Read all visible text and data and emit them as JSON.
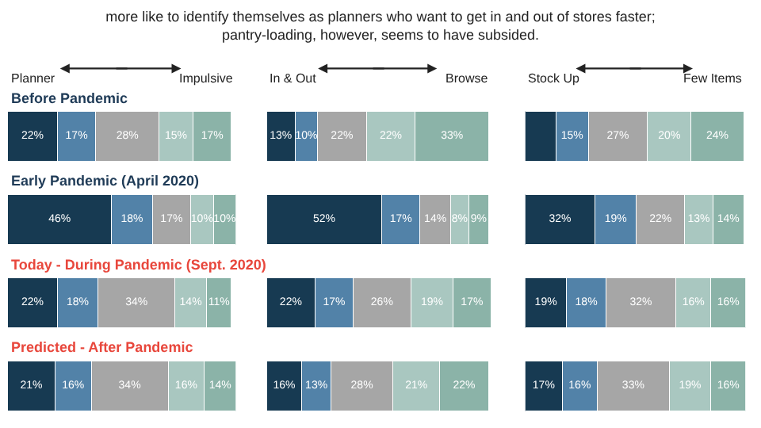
{
  "chart_data": [
    {
      "type": "bar",
      "orientation": "horizontal",
      "stacked": true,
      "title": "more like to identify themselves as planners who want to get in and out of stores faster;\npantry-loading, however, seems to have subsided.",
      "annotations": [
        "Planner",
        "Impulsive"
      ],
      "categories": [
        "Before Pandemic",
        "Early Pandemic (April 2020)",
        "Today - During Pandemic (Sept. 2020)",
        "Predicted - After Pandemic"
      ],
      "series": [
        {
          "color": "#173a52",
          "values": [
            22,
            46,
            22,
            21
          ],
          "value_labels": [
            "22%",
            "46%",
            "22%",
            "21%"
          ]
        },
        {
          "color": "#5282a8",
          "values": [
            17,
            18,
            18,
            16
          ],
          "value_labels": [
            "17%",
            "18%",
            "18%",
            "16%"
          ]
        },
        {
          "color": "#a6a6a6",
          "values": [
            28,
            17,
            34,
            34
          ],
          "value_labels": [
            "28%",
            "17%",
            "34%",
            "34%"
          ]
        },
        {
          "color": "#a9c7c0",
          "values": [
            15,
            10,
            14,
            16
          ],
          "value_labels": [
            "15%",
            "10%",
            "14%",
            "16%"
          ]
        },
        {
          "color": "#8bb3a8",
          "values": [
            17,
            10,
            11,
            14
          ],
          "value_labels": [
            "17%",
            "10%",
            "11%",
            "14%"
          ]
        }
      ]
    },
    {
      "type": "bar",
      "orientation": "horizontal",
      "stacked": true,
      "annotations": [
        "In & Out",
        "Browse"
      ],
      "categories": [
        null,
        null,
        null,
        null
      ],
      "series": [
        {
          "color": "#173a52",
          "values": [
            13,
            52,
            22,
            16
          ],
          "value_labels": [
            "13%",
            "52%",
            "22%",
            "16%"
          ]
        },
        {
          "color": "#5282a8",
          "values": [
            10,
            17,
            17,
            13
          ],
          "value_labels": [
            "10%",
            "17%",
            "17%",
            "13%"
          ]
        },
        {
          "color": "#a6a6a6",
          "values": [
            22,
            14,
            26,
            28
          ],
          "value_labels": [
            "22%",
            "14%",
            "26%",
            "28%"
          ]
        },
        {
          "color": "#a9c7c0",
          "values": [
            22,
            8,
            19,
            21
          ],
          "value_labels": [
            "22%",
            "8%",
            "19%",
            "21%"
          ]
        },
        {
          "color": "#8bb3a8",
          "values": [
            33,
            9,
            17,
            22
          ],
          "value_labels": [
            "33%",
            "9%",
            "17%",
            "22%"
          ]
        }
      ]
    },
    {
      "type": "bar",
      "orientation": "horizontal",
      "stacked": true,
      "annotations": [
        "Stock Up",
        "Few Items"
      ],
      "categories": [
        null,
        null,
        null,
        null
      ],
      "series": [
        {
          "color": "#173a52",
          "values": [
            14,
            32,
            19,
            17
          ],
          "value_labels": [
            null,
            "32%",
            "19%",
            "17%"
          ]
        },
        {
          "color": "#5282a8",
          "values": [
            15,
            19,
            18,
            16
          ],
          "value_labels": [
            "15%",
            "19%",
            "18%",
            "16%"
          ]
        },
        {
          "color": "#a6a6a6",
          "values": [
            27,
            22,
            32,
            33
          ],
          "value_labels": [
            "27%",
            "22%",
            "32%",
            "33%"
          ]
        },
        {
          "color": "#a9c7c0",
          "values": [
            20,
            13,
            16,
            19
          ],
          "value_labels": [
            "20%",
            "13%",
            "16%",
            "19%"
          ]
        },
        {
          "color": "#8bb3a8",
          "values": [
            24,
            14,
            16,
            16
          ],
          "value_labels": [
            "24%",
            "14%",
            "16%",
            "16%"
          ]
        }
      ]
    }
  ]
}
